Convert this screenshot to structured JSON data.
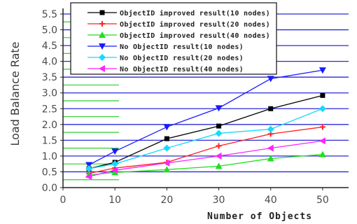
{
  "chart_data": {
    "type": "line",
    "xlabel": "Number of Objects",
    "ylabel": "Load Balance Rate",
    "xlim": [
      0,
      55
    ],
    "ylim": [
      0,
      5.5
    ],
    "x_ticks": [
      "0",
      "10",
      "20",
      "30",
      "40",
      "50"
    ],
    "y_ticks": [
      "0.0",
      "0.5",
      "1.0",
      "1.5",
      "2.0",
      "2.5",
      "3.0",
      "3.5",
      "4.0",
      "4.5",
      "5.0",
      "5.5"
    ],
    "grid": "horizontal",
    "legend_position": "top",
    "x": [
      5,
      10,
      20,
      30,
      40,
      50
    ],
    "series": [
      {
        "name": "ObjectID improved result(10 nodes)",
        "color": "#000000",
        "marker": "square",
        "values": [
          0.6,
          0.8,
          1.55,
          1.95,
          2.5,
          2.92
        ]
      },
      {
        "name": "ObjectID improved result(20 nodes)",
        "color": "#ff2020",
        "marker": "plus",
        "values": [
          0.45,
          0.62,
          0.8,
          1.32,
          1.7,
          1.92
        ]
      },
      {
        "name": "ObjectID improved result(40 nodes)",
        "color": "#22dd22",
        "marker": "triangle-up",
        "values": [
          0.4,
          0.48,
          0.57,
          0.68,
          0.92,
          1.05
        ]
      },
      {
        "name": "No ObjectID result(10 nodes)",
        "color": "#1a1aff",
        "marker": "triangle-down",
        "values": [
          0.72,
          1.15,
          1.92,
          2.52,
          3.45,
          3.72
        ]
      },
      {
        "name": "No ObjectID result(20 nodes)",
        "color": "#18d8ff",
        "marker": "diamond",
        "values": [
          0.6,
          0.75,
          1.25,
          1.72,
          1.85,
          2.5
        ]
      },
      {
        "name": "No ObjectID result(40 nodes)",
        "color": "#ff22ff",
        "marker": "triangle-left",
        "values": [
          0.35,
          0.55,
          0.78,
          1.0,
          1.25,
          1.48
        ]
      }
    ]
  }
}
